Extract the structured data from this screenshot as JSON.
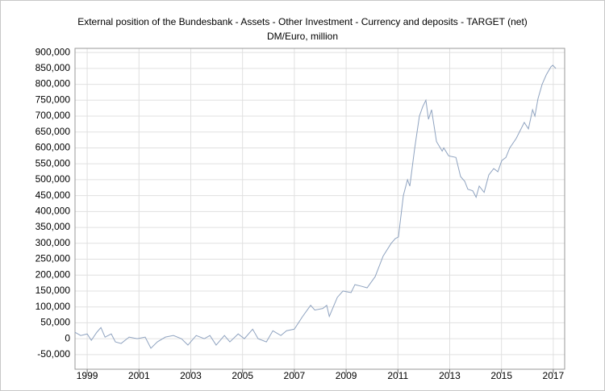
{
  "chart_data": {
    "type": "line",
    "title": "External position of the Bundesbank - Assets - Other Investment - Currency and deposits - TARGET (net)",
    "subtitle": "DM/Euro, million",
    "x": [
      1998.53,
      1998.75,
      1999.0,
      1999.16,
      1999.37,
      1999.53,
      1999.69,
      1999.93,
      2000.09,
      2000.31,
      2000.62,
      2000.93,
      2001.24,
      2001.46,
      2001.71,
      2002.02,
      2002.33,
      2002.64,
      2002.89,
      2003.21,
      2003.52,
      2003.74,
      2003.98,
      2004.3,
      2004.51,
      2004.83,
      2005.07,
      2005.39,
      2005.6,
      2005.92,
      2006.17,
      2006.48,
      2006.7,
      2007.0,
      2007.32,
      2007.63,
      2007.79,
      2008.1,
      2008.25,
      2008.35,
      2008.66,
      2008.88,
      2009.19,
      2009.34,
      2009.59,
      2009.81,
      2010.12,
      2010.43,
      2010.74,
      2010.9,
      2011.02,
      2011.21,
      2011.37,
      2011.46,
      2011.65,
      2011.83,
      2011.96,
      2012.08,
      2012.18,
      2012.3,
      2012.49,
      2012.71,
      2012.77,
      2012.96,
      2013.24,
      2013.42,
      2013.58,
      2013.7,
      2013.89,
      2014.02,
      2014.14,
      2014.33,
      2014.51,
      2014.7,
      2014.86,
      2015.01,
      2015.17,
      2015.32,
      2015.57,
      2015.88,
      2016.04,
      2016.2,
      2016.29,
      2016.41,
      2016.57,
      2016.73,
      2016.91,
      2016.98,
      2017.1
    ],
    "series": [
      {
        "color": "#8fa3c0",
        "values": [
          20000,
          10000,
          15000,
          -5000,
          20000,
          35000,
          5000,
          15000,
          -10000,
          -15000,
          5000,
          0,
          5000,
          -30000,
          -10000,
          5000,
          10000,
          0,
          -20000,
          10000,
          0,
          10000,
          -20000,
          10000,
          -10000,
          15000,
          0,
          30000,
          0,
          -10000,
          25000,
          10000,
          25000,
          30000,
          70000,
          105000,
          90000,
          95000,
          105000,
          70000,
          130000,
          150000,
          145000,
          170000,
          165000,
          160000,
          195000,
          260000,
          300000,
          315000,
          320000,
          450000,
          500000,
          480000,
          600000,
          700000,
          730000,
          750000,
          690000,
          720000,
          620000,
          590000,
          600000,
          575000,
          570000,
          510000,
          495000,
          470000,
          465000,
          445000,
          480000,
          460000,
          515000,
          535000,
          525000,
          560000,
          570000,
          600000,
          630000,
          680000,
          660000,
          720000,
          700000,
          755000,
          800000,
          830000,
          855000,
          860000,
          850000
        ]
      }
    ],
    "xlim": [
      1998.53,
      2017.44
    ],
    "xticks": [
      1999,
      2001,
      2003,
      2005,
      2007,
      2009,
      2011,
      2013,
      2015,
      2017
    ],
    "ylim": [
      -96000,
      913000
    ],
    "yticks": [
      {
        "value": -50000,
        "label": "-50,000"
      },
      0,
      {
        "value": 50000,
        "label": "50,000"
      },
      {
        "value": 100000,
        "label": "100,000"
      },
      {
        "value": 150000,
        "label": "150,000"
      },
      {
        "value": 200000,
        "label": "200,000"
      },
      {
        "value": 250000,
        "label": "250,000"
      },
      {
        "value": 300000,
        "label": "300,000"
      },
      {
        "value": 350000,
        "label": "350,000"
      },
      {
        "value": 400000,
        "label": "400,000"
      },
      {
        "value": 450000,
        "label": "450,000"
      },
      {
        "value": 500000,
        "label": "500,000"
      },
      {
        "value": 550000,
        "label": "550,000"
      },
      {
        "value": 600000,
        "label": "600,000"
      },
      {
        "value": 650000,
        "label": "650,000"
      },
      {
        "value": 700000,
        "label": "700,000"
      },
      {
        "value": 750000,
        "label": "750,000"
      },
      {
        "value": 800000,
        "label": "800,000"
      },
      {
        "value": 850000,
        "label": "850,000"
      },
      {
        "value": 900000,
        "label": "900,000"
      }
    ],
    "grid": true
  }
}
